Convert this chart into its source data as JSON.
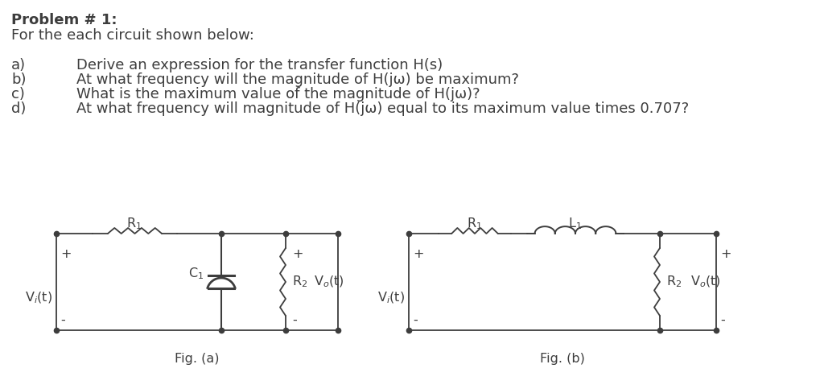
{
  "bg_color": "#ffffff",
  "text_color": "#3d3d3d",
  "title_bold": "Problem # 1:",
  "title_normal": "For the each circuit shown below:",
  "items": [
    [
      "a)",
      "Derive an expression for the transfer function H(s)"
    ],
    [
      "b)",
      "At what frequency will the magnitude of H(jω) be maximum?"
    ],
    [
      "c)",
      "What is the maximum value of the magnitude of H(jω)?"
    ],
    [
      "d)",
      "At what frequency will magnitude of H(jω) equal to its maximum value times 0.707?"
    ]
  ],
  "fig_a_label": "Fig. (a)",
  "fig_b_label": "Fig. (b)",
  "line_color": "#3d3d3d"
}
